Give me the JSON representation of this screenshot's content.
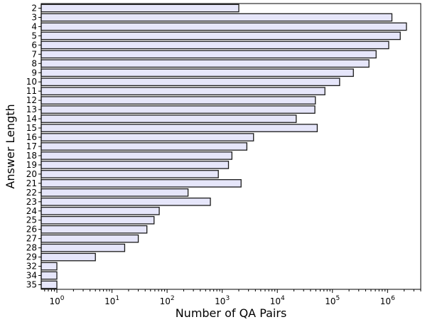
{
  "chart_data": {
    "type": "bar",
    "orientation": "horizontal",
    "x_scale": "log",
    "categories": [
      "2",
      "3",
      "4",
      "5",
      "6",
      "7",
      "8",
      "9",
      "10",
      "11",
      "12",
      "13",
      "14",
      "15",
      "16",
      "17",
      "18",
      "19",
      "20",
      "21",
      "22",
      "23",
      "24",
      "25",
      "26",
      "27",
      "28",
      "29",
      "32",
      "34",
      "35"
    ],
    "values": [
      2000,
      1200000,
      2200000,
      1700000,
      1050000,
      620000,
      460000,
      240000,
      135000,
      73000,
      49000,
      48000,
      22000,
      53000,
      3700,
      2800,
      1500,
      1300,
      850,
      2200,
      240,
      610,
      72,
      58,
      43,
      30,
      17,
      5,
      1,
      1,
      1
    ],
    "xlabel": "Number of QA Pairs",
    "ylabel": "Answer Length",
    "xlim": [
      0.52,
      4000000
    ],
    "x_ticks": [
      {
        "value": 1,
        "base": "10",
        "exp": "0"
      },
      {
        "value": 10,
        "base": "10",
        "exp": "1"
      },
      {
        "value": 100,
        "base": "10",
        "exp": "2"
      },
      {
        "value": 1000,
        "base": "10",
        "exp": "3"
      },
      {
        "value": 10000,
        "base": "10",
        "exp": "4"
      },
      {
        "value": 100000,
        "base": "10",
        "exp": "5"
      },
      {
        "value": 1000000,
        "base": "10",
        "exp": "6"
      }
    ],
    "grid": false,
    "colors": {
      "bar_fill": "#e6e6fa",
      "bar_edge": "#1a1a1a"
    }
  }
}
